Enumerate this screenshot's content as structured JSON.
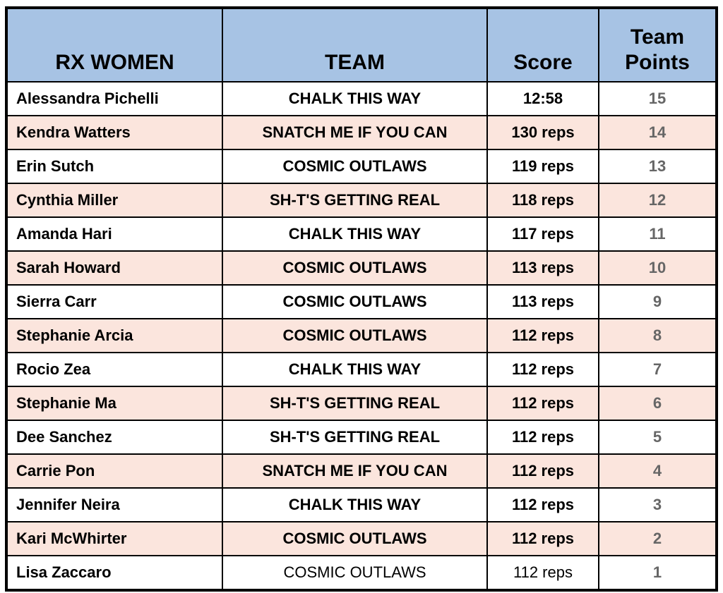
{
  "headers": {
    "name": "RX WOMEN",
    "team": "TEAM",
    "score": "Score",
    "points_line1": "Team",
    "points_line2": "Points"
  },
  "colors": {
    "header_bg": "#a7c3e4",
    "alt_row_bg": "#fbe5dd",
    "points_text": "#666666"
  },
  "rows": [
    {
      "name": "Alessandra Pichelli",
      "team": "CHALK THIS WAY",
      "score": "12:58",
      "points": "15"
    },
    {
      "name": "Kendra Watters",
      "team": "SNATCH ME IF YOU CAN",
      "score": "130 reps",
      "points": "14"
    },
    {
      "name": "Erin Sutch",
      "team": "COSMIC OUTLAWS",
      "score": "119 reps",
      "points": "13"
    },
    {
      "name": "Cynthia Miller",
      "team": "SH-T'S GETTING REAL",
      "score": "118 reps",
      "points": "12"
    },
    {
      "name": "Amanda Hari",
      "team": "CHALK THIS WAY",
      "score": "117 reps",
      "points": "11"
    },
    {
      "name": "Sarah Howard",
      "team": "COSMIC OUTLAWS",
      "score": "113 reps",
      "points": "10"
    },
    {
      "name": "Sierra Carr",
      "team": "COSMIC OUTLAWS",
      "score": "113 reps",
      "points": "9"
    },
    {
      "name": "Stephanie Arcia",
      "team": "COSMIC OUTLAWS",
      "score": "112 reps",
      "points": "8"
    },
    {
      "name": "Rocio Zea",
      "team": "CHALK THIS WAY",
      "score": "112 reps",
      "points": "7"
    },
    {
      "name": "Stephanie Ma",
      "team": "SH-T'S GETTING REAL",
      "score": "112 reps",
      "points": "6"
    },
    {
      "name": "Dee Sanchez",
      "team": "SH-T'S GETTING REAL",
      "score": "112 reps",
      "points": "5"
    },
    {
      "name": "Carrie Pon",
      "team": "SNATCH ME IF YOU CAN",
      "score": "112 reps",
      "points": "4"
    },
    {
      "name": "Jennifer Neira",
      "team": "CHALK THIS WAY",
      "score": "112 reps",
      "points": "3"
    },
    {
      "name": "Kari McWhirter",
      "team": "COSMIC OUTLAWS",
      "score": "112 reps",
      "points": "2"
    },
    {
      "name": "Lisa Zaccaro",
      "team": "COSMIC OUTLAWS",
      "score": "112 reps",
      "points": "1"
    }
  ]
}
